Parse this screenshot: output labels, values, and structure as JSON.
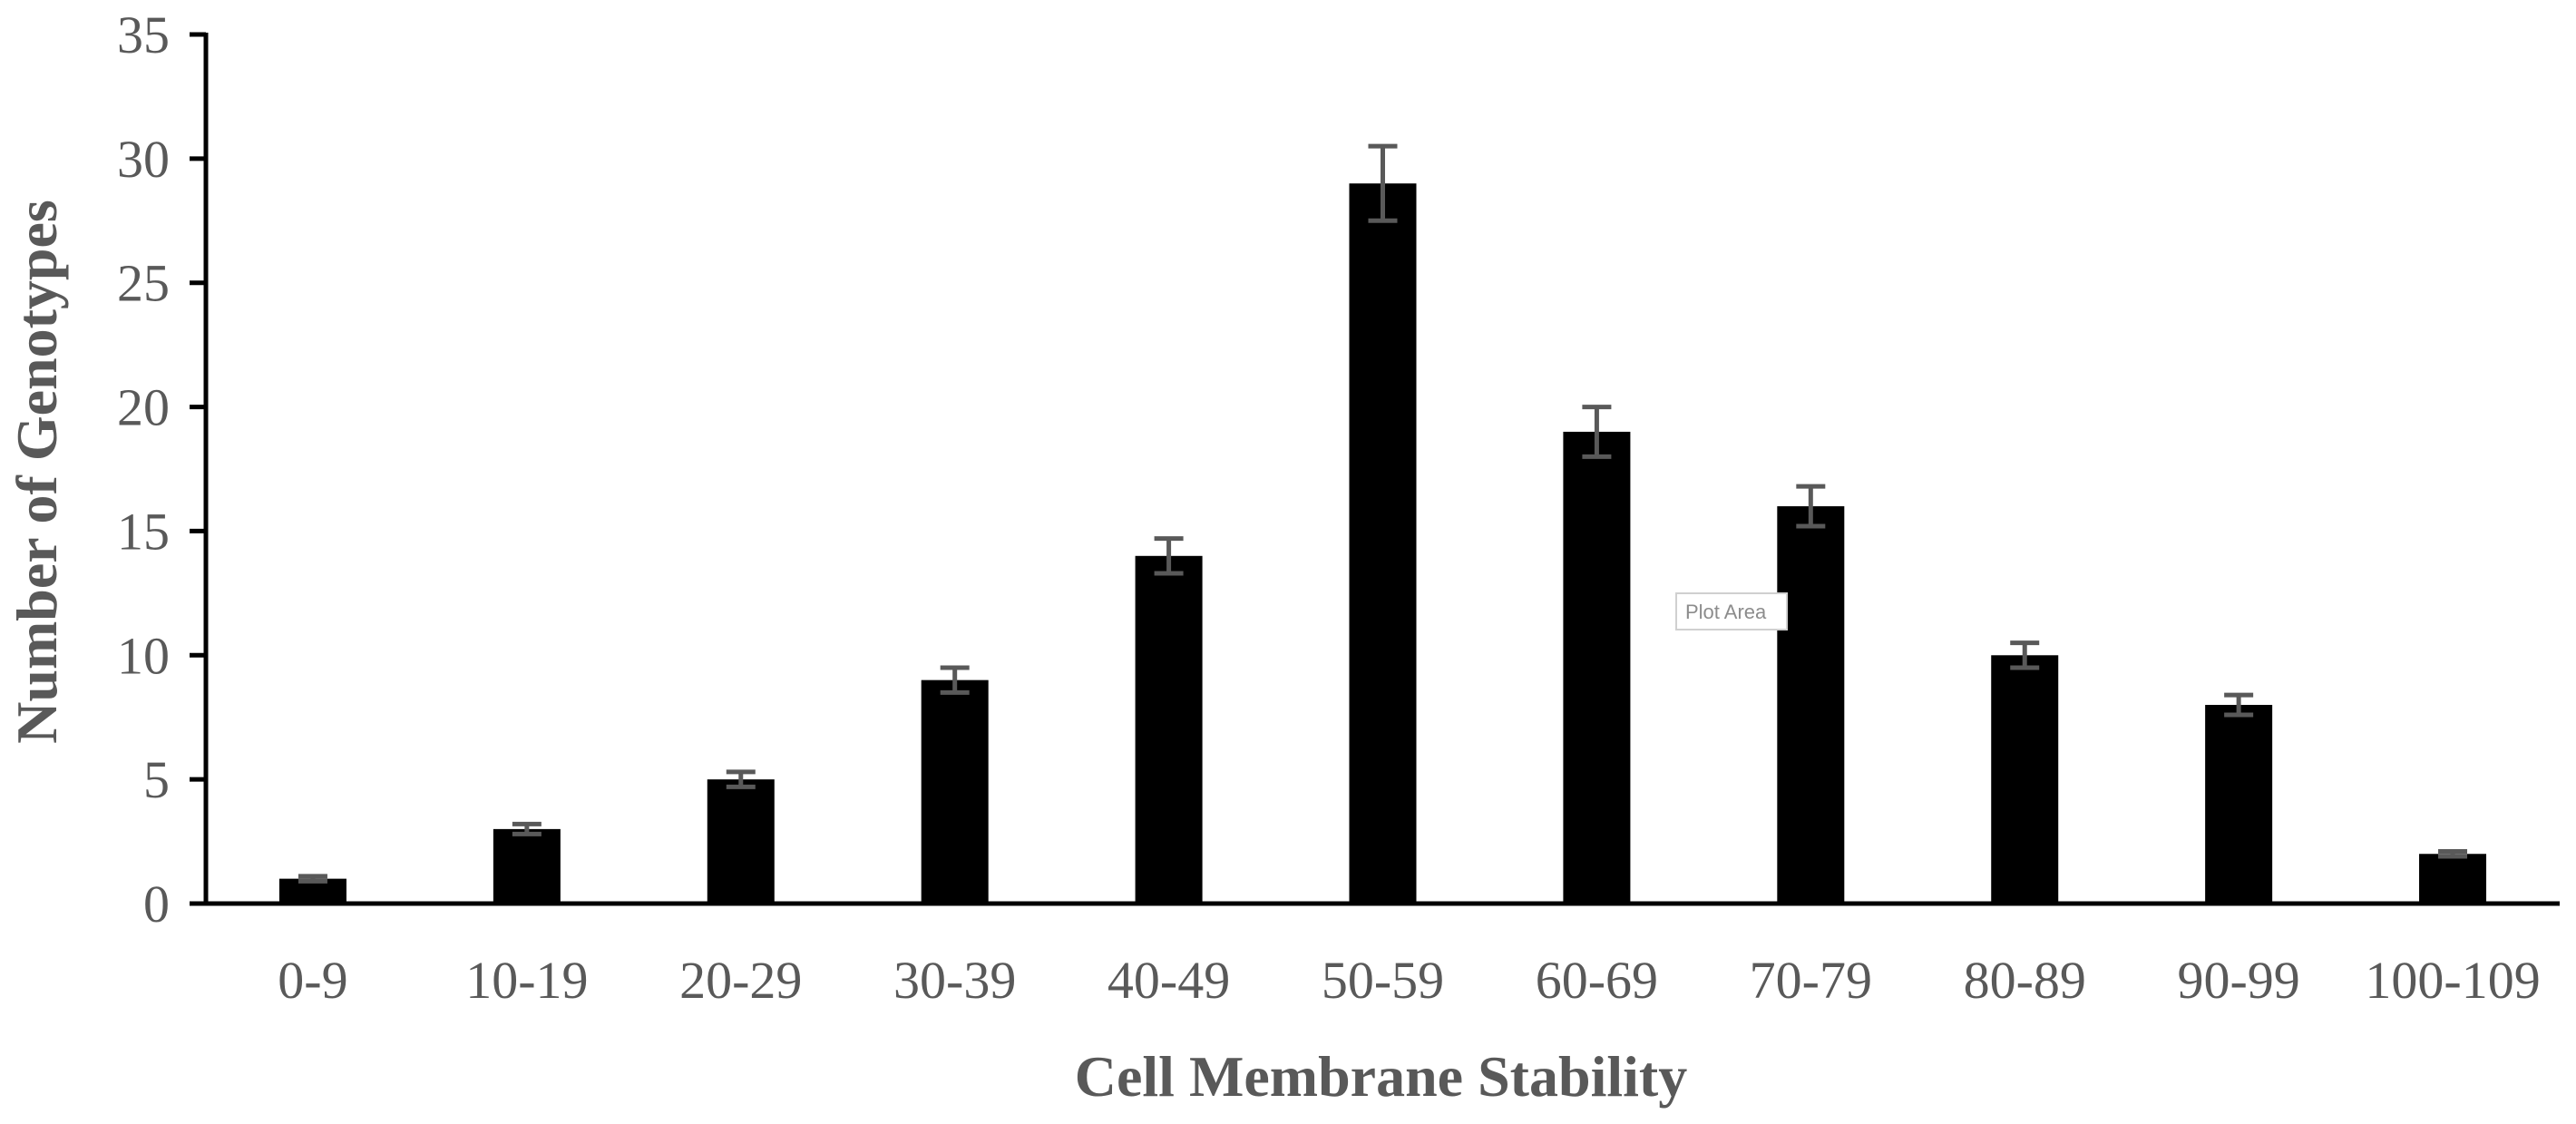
{
  "chart_data": {
    "type": "bar",
    "title": "",
    "xlabel": "Cell Membrane Stability",
    "ylabel": "Number of Genotypes",
    "categories": [
      "0-9",
      "10-19",
      "20-29",
      "30-39",
      "40-49",
      "50-59",
      "60-69",
      "70-79",
      "80-89",
      "90-99",
      "100-109"
    ],
    "values": [
      1,
      3,
      5,
      9,
      14,
      29,
      19,
      16,
      10,
      8,
      2
    ],
    "error_bars": [
      0.1,
      0.2,
      0.3,
      0.5,
      0.7,
      1.5,
      1.0,
      0.8,
      0.5,
      0.4,
      0.1
    ],
    "ylim": [
      0,
      35
    ],
    "yticks": [
      0,
      5,
      10,
      15,
      20,
      25,
      30,
      35
    ],
    "grid": false,
    "legend": "none",
    "bar_color": "#000000",
    "error_bar_color": "#595959"
  },
  "overlay": {
    "tooltip_label": "Plot Area"
  }
}
